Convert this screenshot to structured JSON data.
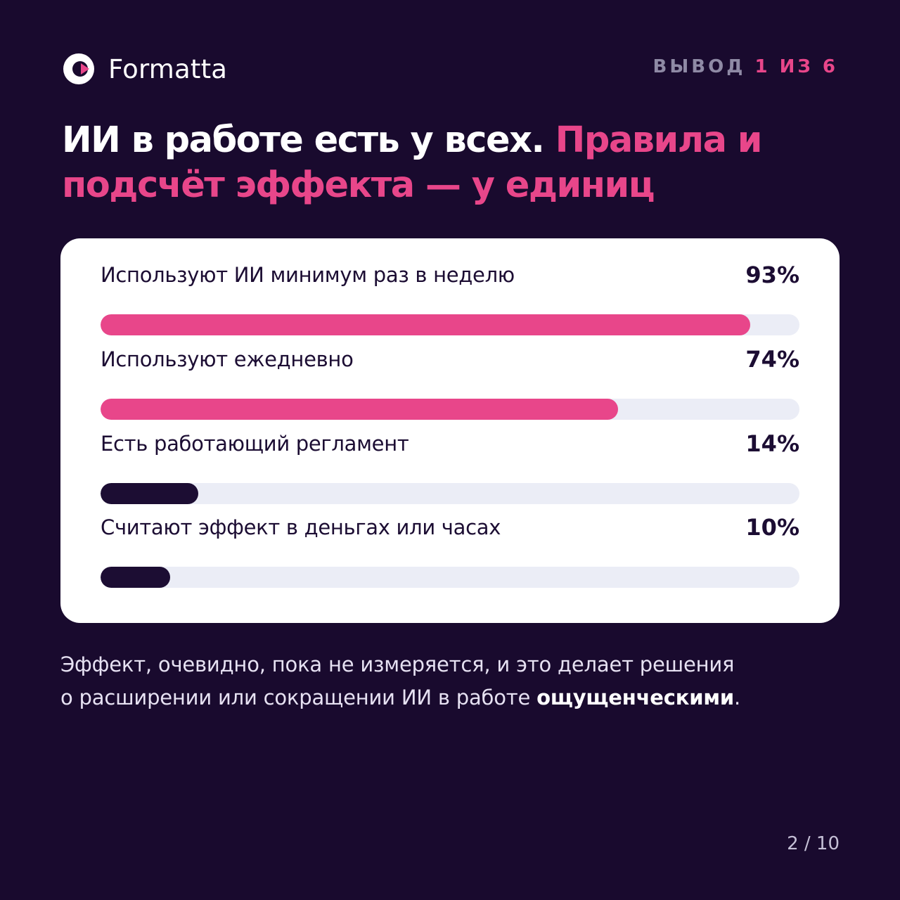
{
  "brand": {
    "name": "Formatta",
    "icon": "formatta-logo-icon",
    "colors": {
      "accent": "#e8468a",
      "dark": "#190a2e"
    }
  },
  "counter": {
    "prefix": "ВЫВОД",
    "current": "1",
    "sep": "ИЗ",
    "total": "6"
  },
  "headline": {
    "white": "ИИ в работе есть у всех.",
    "pink": "Правила и подсчёт эффекта — у единиц"
  },
  "chart_data": {
    "type": "bar",
    "orientation": "horizontal",
    "xlim": [
      0,
      100
    ],
    "categories": [
      "Используют ИИ минимум раз в неделю",
      "Используют ежедневно",
      "Есть работающий регламент",
      "Считают эффект в деньгах или часах"
    ],
    "values": [
      93,
      74,
      14,
      10
    ],
    "value_labels": [
      "93%",
      "74%",
      "14%",
      "10%"
    ],
    "bar_colors": [
      "#e8468a",
      "#e8468a",
      "#1c0d33",
      "#1c0d33"
    ],
    "track_color": "#ebedf6"
  },
  "conclusion": {
    "line1": "Эффект, очевидно, пока не измеряется, и это делает решения",
    "line2_before": "о расширении или сокращении ИИ в работе",
    "line2_bold": "ощущенческими",
    "line2_after": "."
  },
  "page": "2 / 10"
}
